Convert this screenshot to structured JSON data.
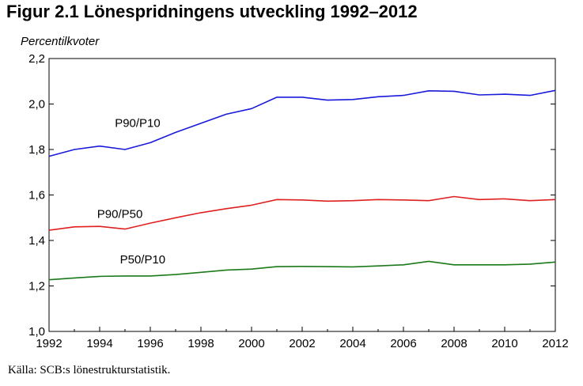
{
  "header": {
    "title": "Figur 2.1 Lönespridningens utveckling 1992–2012"
  },
  "footer": {
    "source": "Källa: SCB:s lönestrukturstatistik."
  },
  "chart_data": {
    "type": "line",
    "title": "Figur 2.1 Lönespridningens utveckling 1992–2012",
    "xlabel": "",
    "ylabel": "Percentilkvoter",
    "xlim": [
      1992,
      2012
    ],
    "ylim": [
      1.0,
      2.2
    ],
    "grid": false,
    "legend": "inline labels",
    "x": [
      1992,
      1993,
      1994,
      1995,
      1996,
      1997,
      1998,
      1999,
      2000,
      2001,
      2002,
      2003,
      2004,
      2005,
      2006,
      2007,
      2008,
      2009,
      2010,
      2011,
      2012
    ],
    "x_tick_labels": [
      "1992",
      "1994",
      "1996",
      "1998",
      "2000",
      "2002",
      "2004",
      "2006",
      "2008",
      "2010",
      "2012"
    ],
    "x_tick_values": [
      1992,
      1994,
      1996,
      1998,
      2000,
      2002,
      2004,
      2006,
      2008,
      2010,
      2012
    ],
    "y_tick_labels": [
      "1,0",
      "1,2",
      "1,4",
      "1,6",
      "1,8",
      "2,0",
      "2,2"
    ],
    "y_tick_values": [
      1.0,
      1.2,
      1.4,
      1.6,
      1.8,
      2.0,
      2.2
    ],
    "series": [
      {
        "name": "P90/P10",
        "color": "#1a1adb",
        "values": [
          1.77,
          1.8,
          1.815,
          1.8,
          1.83,
          1.875,
          1.915,
          1.955,
          1.98,
          2.03,
          2.03,
          2.017,
          2.02,
          2.032,
          2.038,
          2.058,
          2.056,
          2.04,
          2.043,
          2.038,
          2.06
        ],
        "label_x": 1994.6,
        "label_y": 1.9
      },
      {
        "name": "P90/P50",
        "color": "#e02020",
        "values": [
          1.445,
          1.46,
          1.462,
          1.45,
          1.476,
          1.5,
          1.522,
          1.54,
          1.555,
          1.58,
          1.578,
          1.573,
          1.575,
          1.58,
          1.578,
          1.575,
          1.593,
          1.58,
          1.583,
          1.575,
          1.58
        ],
        "label_x": 1993.9,
        "label_y": 1.5
      },
      {
        "name": "P50/P10",
        "color": "#1a7a1a",
        "values": [
          1.227,
          1.235,
          1.242,
          1.244,
          1.244,
          1.25,
          1.26,
          1.27,
          1.274,
          1.285,
          1.286,
          1.285,
          1.284,
          1.288,
          1.293,
          1.308,
          1.293,
          1.293,
          1.293,
          1.296,
          1.305
        ],
        "label_x": 1994.8,
        "label_y": 1.3
      }
    ]
  }
}
